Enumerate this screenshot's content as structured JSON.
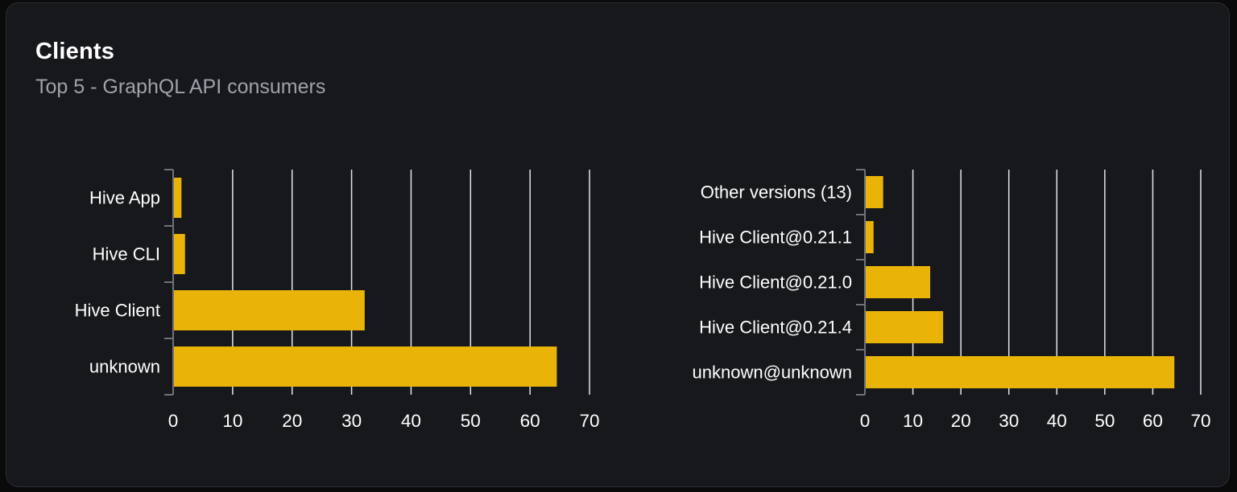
{
  "header": {
    "title": "Clients",
    "subtitle": "Top 5 - GraphQL API consumers"
  },
  "colors": {
    "bar": "#eab308",
    "grid": "#e4e4e7",
    "axis": "#71717a",
    "label_text": "#ffffff",
    "tick_text": "#ffffff",
    "subtitle_text": "#a1a1aa",
    "card_background": "#16181c",
    "page_background": "#0a0a0b",
    "card_border": "#2b2d33"
  },
  "chart_data": [
    {
      "type": "bar",
      "orientation": "horizontal",
      "name": "clients-by-name",
      "categories": [
        "Hive App",
        "Hive CLI",
        "Hive Client",
        "unknown"
      ],
      "values": [
        1.4,
        2,
        32.2,
        64.5
      ],
      "xticks": [
        0,
        10,
        20,
        30,
        40,
        50,
        60,
        70
      ],
      "xlim": [
        0,
        70
      ],
      "xlabel": "",
      "ylabel": "",
      "grid": "vertical",
      "legend": "none"
    },
    {
      "type": "bar",
      "orientation": "horizontal",
      "name": "clients-by-version",
      "categories": [
        "Other versions (13)",
        "Hive Client@0.21.1",
        "Hive Client@0.21.0",
        "Hive Client@0.21.4",
        "unknown@unknown"
      ],
      "values": [
        3.8,
        1.8,
        13.6,
        16.3,
        64.5
      ],
      "xticks": [
        0,
        10,
        20,
        30,
        40,
        50,
        60,
        70
      ],
      "xlim": [
        0,
        70
      ],
      "xlabel": "",
      "ylabel": "",
      "grid": "vertical",
      "legend": "none"
    }
  ]
}
